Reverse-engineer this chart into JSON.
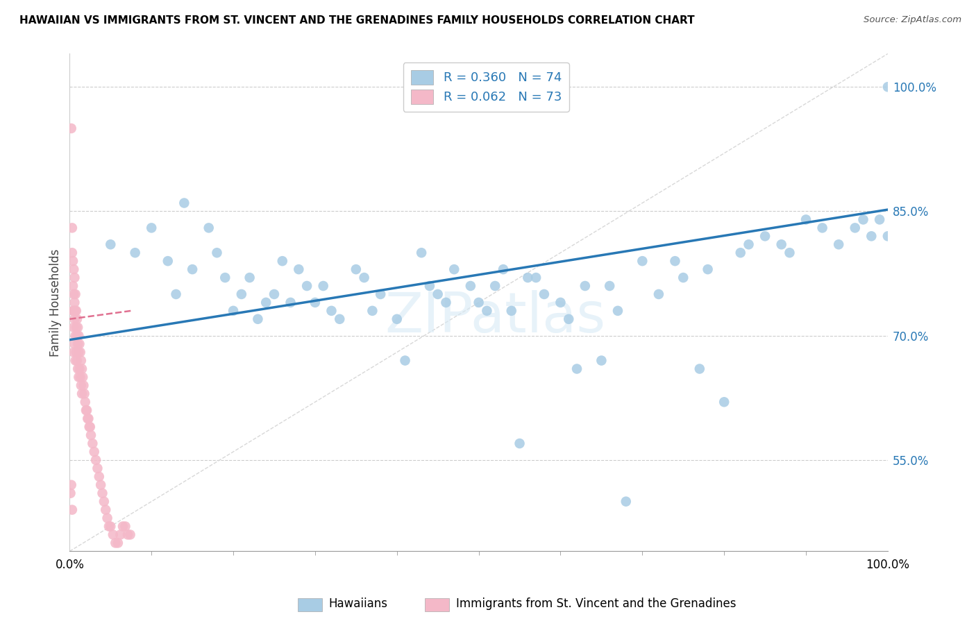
{
  "title": "HAWAIIAN VS IMMIGRANTS FROM ST. VINCENT AND THE GRENADINES FAMILY HOUSEHOLDS CORRELATION CHART",
  "source": "Source: ZipAtlas.com",
  "ylabel": "Family Households",
  "ytick_labels": [
    "100.0%",
    "85.0%",
    "70.0%",
    "55.0%"
  ],
  "ytick_values": [
    1.0,
    0.85,
    0.7,
    0.55
  ],
  "xlim": [
    0,
    1.0
  ],
  "ylim": [
    0.44,
    1.04
  ],
  "legend_r1": "R = 0.360",
  "legend_n1": "N = 74",
  "legend_r2": "R = 0.062",
  "legend_n2": "N = 73",
  "color_blue": "#a8cce4",
  "color_pink": "#f4b8c8",
  "color_trend_blue": "#2878b5",
  "color_diagonal": "#d8d8d8",
  "watermark": "ZIPatlas",
  "blue_trend_x0": 0.0,
  "blue_trend_y0": 0.695,
  "blue_trend_x1": 1.0,
  "blue_trend_y1": 0.852,
  "pink_trend_x0": 0.0,
  "pink_trend_y0": 0.72,
  "pink_trend_x1": 0.075,
  "pink_trend_y1": 0.73,
  "blue_scatter_x": [
    0.05,
    0.08,
    0.1,
    0.12,
    0.13,
    0.14,
    0.15,
    0.17,
    0.18,
    0.19,
    0.2,
    0.21,
    0.22,
    0.23,
    0.24,
    0.25,
    0.26,
    0.27,
    0.28,
    0.29,
    0.3,
    0.31,
    0.32,
    0.33,
    0.35,
    0.36,
    0.37,
    0.38,
    0.4,
    0.41,
    0.43,
    0.44,
    0.45,
    0.46,
    0.47,
    0.49,
    0.5,
    0.51,
    0.52,
    0.53,
    0.54,
    0.55,
    0.56,
    0.57,
    0.58,
    0.6,
    0.61,
    0.62,
    0.63,
    0.65,
    0.66,
    0.67,
    0.68,
    0.7,
    0.72,
    0.74,
    0.75,
    0.77,
    0.78,
    0.8,
    0.82,
    0.83,
    0.85,
    0.87,
    0.88,
    0.9,
    0.92,
    0.94,
    0.96,
    0.97,
    0.98,
    0.99,
    1.0,
    1.0
  ],
  "blue_scatter_y": [
    0.81,
    0.8,
    0.83,
    0.79,
    0.75,
    0.86,
    0.78,
    0.83,
    0.8,
    0.77,
    0.73,
    0.75,
    0.77,
    0.72,
    0.74,
    0.75,
    0.79,
    0.74,
    0.78,
    0.76,
    0.74,
    0.76,
    0.73,
    0.72,
    0.78,
    0.77,
    0.73,
    0.75,
    0.72,
    0.67,
    0.8,
    0.76,
    0.75,
    0.74,
    0.78,
    0.76,
    0.74,
    0.73,
    0.76,
    0.78,
    0.73,
    0.57,
    0.77,
    0.77,
    0.75,
    0.74,
    0.72,
    0.66,
    0.76,
    0.67,
    0.76,
    0.73,
    0.5,
    0.79,
    0.75,
    0.79,
    0.77,
    0.66,
    0.78,
    0.62,
    0.8,
    0.81,
    0.82,
    0.81,
    0.8,
    0.84,
    0.83,
    0.81,
    0.83,
    0.84,
    0.82,
    0.84,
    0.82,
    1.0
  ],
  "pink_scatter_x": [
    0.002,
    0.003,
    0.003,
    0.004,
    0.004,
    0.004,
    0.005,
    0.005,
    0.005,
    0.005,
    0.005,
    0.006,
    0.006,
    0.006,
    0.006,
    0.007,
    0.007,
    0.007,
    0.007,
    0.008,
    0.008,
    0.008,
    0.009,
    0.009,
    0.009,
    0.01,
    0.01,
    0.01,
    0.011,
    0.011,
    0.011,
    0.012,
    0.012,
    0.013,
    0.013,
    0.014,
    0.014,
    0.015,
    0.015,
    0.016,
    0.017,
    0.018,
    0.019,
    0.02,
    0.021,
    0.022,
    0.023,
    0.024,
    0.025,
    0.026,
    0.028,
    0.03,
    0.032,
    0.034,
    0.036,
    0.038,
    0.04,
    0.042,
    0.044,
    0.046,
    0.048,
    0.05,
    0.053,
    0.056,
    0.059,
    0.062,
    0.065,
    0.068,
    0.071,
    0.074,
    0.001,
    0.002,
    0.003
  ],
  "pink_scatter_y": [
    0.95,
    0.83,
    0.8,
    0.79,
    0.76,
    0.73,
    0.78,
    0.75,
    0.73,
    0.71,
    0.68,
    0.77,
    0.74,
    0.72,
    0.69,
    0.75,
    0.73,
    0.7,
    0.67,
    0.73,
    0.71,
    0.68,
    0.72,
    0.7,
    0.67,
    0.71,
    0.69,
    0.66,
    0.7,
    0.68,
    0.65,
    0.69,
    0.66,
    0.68,
    0.65,
    0.67,
    0.64,
    0.66,
    0.63,
    0.65,
    0.64,
    0.63,
    0.62,
    0.61,
    0.61,
    0.6,
    0.6,
    0.59,
    0.59,
    0.58,
    0.57,
    0.56,
    0.55,
    0.54,
    0.53,
    0.52,
    0.51,
    0.5,
    0.49,
    0.48,
    0.47,
    0.47,
    0.46,
    0.45,
    0.45,
    0.46,
    0.47,
    0.47,
    0.46,
    0.46,
    0.51,
    0.52,
    0.49
  ]
}
